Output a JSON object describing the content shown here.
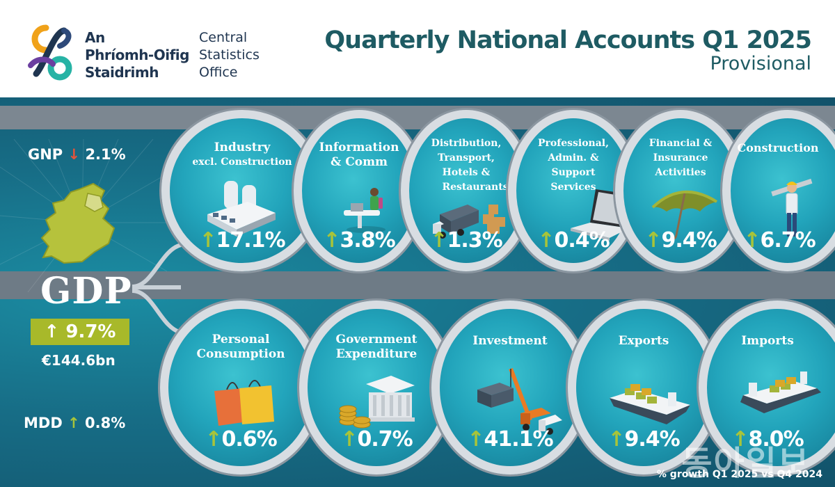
{
  "header": {
    "logo_irish": [
      "An",
      "Phríomh-Oifig",
      "Staidrimh"
    ],
    "logo_english": [
      "Central",
      "Statistics",
      "Office"
    ],
    "title": "Quarterly National Accounts Q1 2025",
    "subtitle": "Provisional"
  },
  "colors": {
    "brand_teal": "#1e5b63",
    "panel": "#176d86",
    "up_arrow": "#a8c43a",
    "down_arrow": "#e4533a",
    "gdp_badge": "#a8b92a"
  },
  "headline": {
    "gnp_label": "GNP",
    "gnp_arrow": "↓",
    "gnp_value": "2.1%",
    "gdp_label": "GDP",
    "gdp_arrow": "↑",
    "gdp_value": "9.7%",
    "gdp_amount": "€144.6bn",
    "mdd_label": "MDD",
    "mdd_arrow": "↑",
    "mdd_value": "0.8%"
  },
  "sectors": [
    {
      "label": [
        "Industry",
        "excl. Construction"
      ],
      "arrow": "↑",
      "value": "17.1%",
      "icon": "factory-icon"
    },
    {
      "label": [
        "Information",
        "& Comm"
      ],
      "arrow": "↑",
      "value": "3.8%",
      "icon": "laptop-worker-icon"
    },
    {
      "label": [
        "Distribution,",
        "Transport,",
        "Hotels &",
        "Restaurants"
      ],
      "arrow": "↑",
      "value": "1.3%",
      "icon": "truck-boxes-icon"
    },
    {
      "label": [
        "Professional,",
        "Admin. &",
        "Support",
        "Services"
      ],
      "arrow": "↑",
      "value": "0.4%",
      "icon": "laptop-icon"
    },
    {
      "label": [
        "Financial &",
        "Insurance",
        "Activities"
      ],
      "arrow": "↑",
      "value": "9.4%",
      "icon": "umbrella-icon"
    },
    {
      "label": [
        "Construction"
      ],
      "arrow": "↑",
      "value": "6.7%",
      "icon": "construction-worker-icon"
    }
  ],
  "expenditure": [
    {
      "label": [
        "Personal",
        "Consumption"
      ],
      "arrow": "↑",
      "value": "0.6%",
      "icon": "shopping-bags-icon"
    },
    {
      "label": [
        "Government",
        "Expenditure"
      ],
      "arrow": "↑",
      "value": "0.7%",
      "icon": "government-building-icon"
    },
    {
      "label": [
        "Investment"
      ],
      "arrow": "↑",
      "value": "41.1%",
      "icon": "crane-icon"
    },
    {
      "label": [
        "Exports"
      ],
      "arrow": "↑",
      "value": "9.4%",
      "icon": "cargo-ship-icon"
    },
    {
      "label": [
        "Imports"
      ],
      "arrow": "↑",
      "value": "8.0%",
      "icon": "cargo-ship-icon"
    }
  ],
  "footnote": "% growth Q1 2025 vs Q4 2024",
  "watermark": "동아일보"
}
